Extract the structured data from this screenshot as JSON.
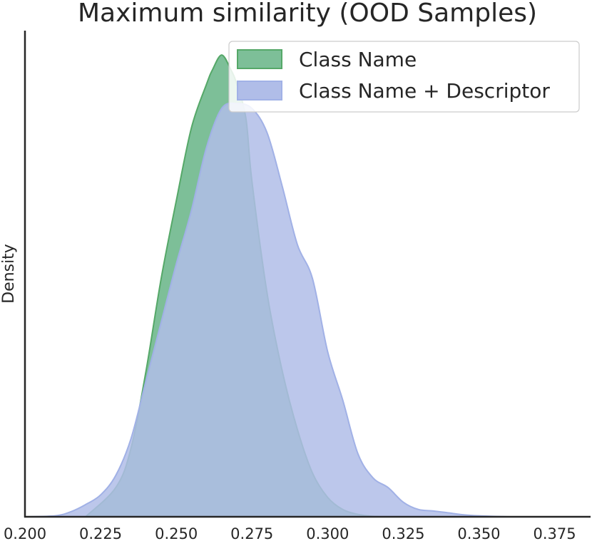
{
  "chart_data": {
    "type": "area",
    "title": "Maximum similarity (OOD Samples)",
    "xlabel": "",
    "ylabel": "Density",
    "xlim": [
      0.2,
      0.385
    ],
    "ylim": [
      0,
      1.0
    ],
    "xticks": [
      "0.200",
      "0.225",
      "0.250",
      "0.275",
      "0.300",
      "0.325",
      "0.350",
      "0.375"
    ],
    "xtick_values": [
      0.2,
      0.225,
      0.25,
      0.275,
      0.3,
      0.325,
      0.35,
      0.375
    ],
    "grid": false,
    "legend_position": "top-right",
    "series": [
      {
        "name": "Class Name",
        "color": "#55a868",
        "fill": "#7dbf98",
        "x": [
          0.22,
          0.23,
          0.235,
          0.24,
          0.245,
          0.25,
          0.255,
          0.26,
          0.262,
          0.265,
          0.268,
          0.27,
          0.273,
          0.275,
          0.28,
          0.285,
          0.29,
          0.295,
          0.3,
          0.305,
          0.31,
          0.315,
          0.32
        ],
        "y": [
          0.0,
          0.06,
          0.14,
          0.3,
          0.49,
          0.65,
          0.8,
          0.89,
          0.92,
          0.95,
          0.92,
          0.89,
          0.82,
          0.69,
          0.46,
          0.3,
          0.18,
          0.09,
          0.04,
          0.015,
          0.005,
          0.001,
          0.0
        ]
      },
      {
        "name": "Class Name + Descriptor",
        "color": "#a1b1e6",
        "fill": "#b0bde8",
        "x": [
          0.2,
          0.21,
          0.215,
          0.22,
          0.225,
          0.23,
          0.235,
          0.24,
          0.245,
          0.25,
          0.255,
          0.26,
          0.265,
          0.27,
          0.275,
          0.28,
          0.285,
          0.29,
          0.295,
          0.3,
          0.305,
          0.31,
          0.315,
          0.32,
          0.325,
          0.33,
          0.335,
          0.34,
          0.345,
          0.35,
          0.36
        ],
        "y": [
          0.0,
          0.002,
          0.01,
          0.025,
          0.045,
          0.085,
          0.16,
          0.28,
          0.4,
          0.52,
          0.63,
          0.76,
          0.84,
          0.85,
          0.84,
          0.79,
          0.68,
          0.56,
          0.49,
          0.34,
          0.24,
          0.13,
          0.08,
          0.06,
          0.03,
          0.015,
          0.012,
          0.008,
          0.004,
          0.002,
          0.0
        ]
      }
    ]
  }
}
